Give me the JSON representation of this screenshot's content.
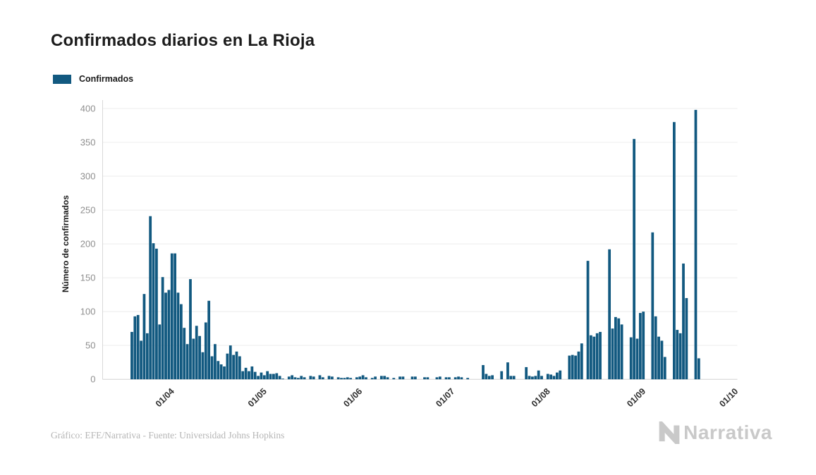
{
  "title": "Confirmados diarios en La Rioja",
  "legend": {
    "label": "Confirmados"
  },
  "footer": {
    "credit": "Gráfico: EFE/Narrativa - Fuente: Universidad Johns Hopkins"
  },
  "branding": {
    "logo_text": "Narrativa",
    "logo_icon": "narrativa-n-chevron"
  },
  "colors": {
    "bar": "#125980",
    "grid": "#ececec",
    "axis_line": "#d8d8d8",
    "y_tick_text": "#8f8f8f",
    "x_tick_text": "#2e2e2e",
    "title_text": "#1c1c1c",
    "credit_text": "#b6b6b6",
    "logo_gray": "#c9c9c9",
    "background": "#ffffff"
  },
  "chart_data": {
    "type": "bar",
    "title": "Confirmados diarios en La Rioja",
    "xlabel": "",
    "ylabel": "Número de confirmados",
    "series_name": "Confirmados",
    "legend_position": "top-left",
    "grid": true,
    "y_ticks": [
      0,
      50,
      100,
      150,
      200,
      250,
      300,
      350,
      400
    ],
    "ylim": [
      0,
      400
    ],
    "x_ticks": [
      {
        "label": "01/04",
        "day": 10
      },
      {
        "label": "01/05",
        "day": 40
      },
      {
        "label": "01/06",
        "day": 71
      },
      {
        "label": "01/07",
        "day": 101
      },
      {
        "label": "01/08",
        "day": 132
      },
      {
        "label": "01/09",
        "day": 163
      },
      {
        "label": "01/10",
        "day": 193
      }
    ],
    "x_tick_rotation_deg": -45,
    "x_domain_days": [
      -9,
      197
    ],
    "note": "daily bars; day 0 = first bar (10 days before the 01/04 tick); values estimated from gridlines",
    "values": [
      70,
      93,
      95,
      57,
      126,
      68,
      241,
      201,
      193,
      81,
      151,
      128,
      132,
      186,
      186,
      128,
      111,
      76,
      52,
      148,
      60,
      79,
      64,
      40,
      84,
      116,
      34,
      52,
      27,
      22,
      19,
      38,
      50,
      36,
      41,
      34,
      12,
      17,
      12,
      19,
      11,
      5,
      10,
      6,
      12,
      8,
      8,
      9,
      5,
      1,
      0,
      4,
      6,
      3,
      2,
      5,
      3,
      0,
      5,
      4,
      0,
      6,
      3,
      0,
      5,
      4,
      0,
      3,
      2,
      2,
      3,
      2,
      0,
      3,
      4,
      6,
      3,
      0,
      2,
      4,
      0,
      5,
      5,
      3,
      0,
      2,
      0,
      4,
      4,
      0,
      0,
      4,
      4,
      0,
      0,
      3,
      3,
      0,
      0,
      3,
      4,
      0,
      3,
      3,
      0,
      3,
      4,
      3,
      0,
      2,
      0,
      0,
      0,
      0,
      21,
      8,
      5,
      6,
      0,
      0,
      12,
      0,
      25,
      5,
      5,
      0,
      0,
      0,
      18,
      5,
      4,
      5,
      13,
      5,
      0,
      8,
      7,
      5,
      10,
      13,
      0,
      0,
      35,
      36,
      35,
      41,
      53,
      0,
      175,
      65,
      63,
      68,
      70,
      0,
      0,
      192,
      75,
      92,
      90,
      81,
      0,
      0,
      62,
      355,
      60,
      98,
      100,
      0,
      0,
      217,
      93,
      63,
      57,
      33,
      0,
      0,
      380,
      73,
      68,
      171,
      120,
      0,
      0,
      398,
      31
    ]
  }
}
